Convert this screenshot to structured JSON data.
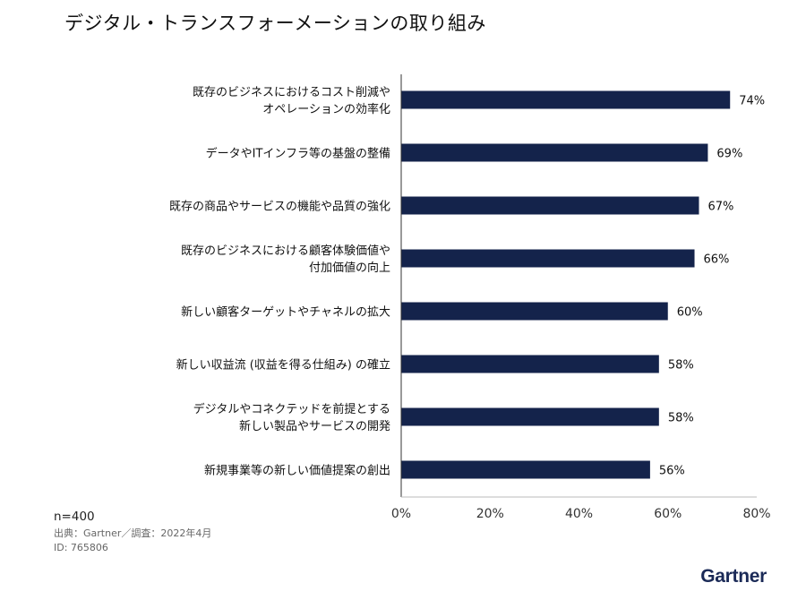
{
  "chart_data": {
    "type": "bar",
    "orientation": "horizontal",
    "title": "デジタル・トランスフォーメーションの取り組み",
    "categories": [
      [
        "既存のビジネスにおけるコスト削減や",
        "オペレーションの効率化"
      ],
      [
        "データやITインフラ等の基盤の整備"
      ],
      [
        "既存の商品やサービスの機能や品質の強化"
      ],
      [
        "既存のビジネスにおける顧客体験価値や",
        "付加価値の向上"
      ],
      [
        "新しい顧客ターゲットやチャネルの拡大"
      ],
      [
        "新しい収益流 (収益を得る仕組み) の確立"
      ],
      [
        "デジタルやコネクテッドを前提とする",
        "新しい製品やサービスの開発"
      ],
      [
        "新規事業等の新しい価値提案の創出"
      ]
    ],
    "values": [
      74,
      69,
      67,
      66,
      60,
      58,
      58,
      56
    ],
    "value_labels": [
      "74%",
      "69%",
      "67%",
      "66%",
      "60%",
      "58%",
      "58%",
      "56%"
    ],
    "xlim": [
      0,
      80
    ],
    "x_ticks": [
      0,
      20,
      40,
      60,
      80
    ],
    "x_tick_labels": [
      "0%",
      "20%",
      "40%",
      "60%",
      "80%"
    ],
    "grid": false,
    "bar_color": "#14234b"
  },
  "footnote": {
    "n": "n=400",
    "source": "出典：Gartner／調査：2022年4月",
    "id": "ID: 765806"
  },
  "brand": "Gartner"
}
